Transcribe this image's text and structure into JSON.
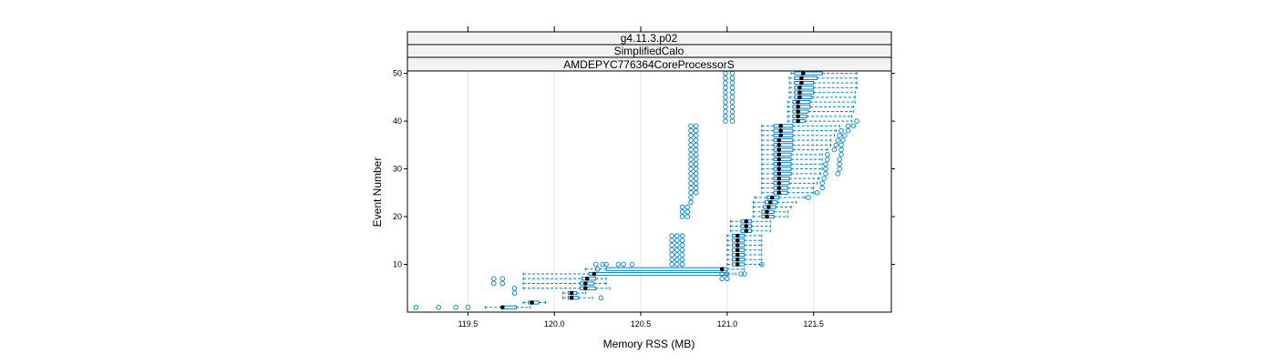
{
  "chart_data": {
    "type": "boxplot",
    "strips": [
      "g4.11.3.p02",
      "SimplifiedCalo",
      "AMDEPYC776364CoreProcessorS"
    ],
    "xlabel": "Memory RSS (MB)",
    "ylabel": "Event Number",
    "xlim": [
      119.15,
      121.95
    ],
    "ylim": [
      0,
      50.5
    ],
    "x_ticks": [
      119.5,
      120.0,
      120.5,
      121.0,
      121.5
    ],
    "x_tick_labels": [
      "119.5",
      "120.0",
      "120.5",
      "121.0",
      "121.5"
    ],
    "y_ticks": [
      10,
      20,
      30,
      40,
      50
    ],
    "y_tick_labels": [
      "10",
      "20",
      "30",
      "40",
      "50"
    ],
    "grid": true,
    "colors": {
      "box": "#0080c0",
      "median": "#000000",
      "strip_bg": "#f2f2f2",
      "grid": "#e6e6e6"
    },
    "series": [
      {
        "event": 1,
        "wlo": 119.6,
        "q1": 119.7,
        "median": 119.7,
        "q3": 119.78,
        "whi": 119.86,
        "outliers": [
          119.2,
          119.33,
          119.43,
          119.5
        ]
      },
      {
        "event": 2,
        "wlo": 119.82,
        "q1": 119.85,
        "median": 119.87,
        "q3": 119.91,
        "whi": 119.95,
        "outliers": []
      },
      {
        "event": 3,
        "wlo": 120.05,
        "q1": 120.08,
        "median": 120.1,
        "q3": 120.14,
        "whi": 120.22,
        "outliers": [
          120.27
        ]
      },
      {
        "event": 4,
        "wlo": 120.05,
        "q1": 120.08,
        "median": 120.1,
        "q3": 120.13,
        "whi": 120.18,
        "outliers": [
          119.77
        ]
      },
      {
        "event": 5,
        "wlo": 119.82,
        "q1": 120.15,
        "median": 120.18,
        "q3": 120.24,
        "whi": 120.32,
        "outliers": [
          119.77
        ]
      },
      {
        "event": 6,
        "wlo": 119.82,
        "q1": 120.15,
        "median": 120.18,
        "q3": 120.23,
        "whi": 120.3,
        "outliers": [
          119.65,
          119.7
        ]
      },
      {
        "event": 7,
        "wlo": 119.82,
        "q1": 120.16,
        "median": 120.19,
        "q3": 120.24,
        "whi": 120.3,
        "outliers": [
          119.65,
          119.7,
          120.97,
          121.0
        ]
      },
      {
        "event": 8,
        "wlo": 119.82,
        "q1": 120.2,
        "median": 120.23,
        "q3": 121.0,
        "whi": 121.05,
        "outliers": [
          120.97,
          121.0,
          121.08,
          121.1
        ]
      },
      {
        "event": 9,
        "wlo": 120.18,
        "q1": 120.3,
        "median": 120.97,
        "q3": 121.0,
        "whi": 121.1,
        "outliers": [
          120.25
        ]
      },
      {
        "event": 10,
        "wlo": 121.0,
        "q1": 121.03,
        "median": 121.06,
        "q3": 121.1,
        "whi": 121.2,
        "outliers": [
          120.24,
          120.28,
          120.3,
          120.37,
          120.4,
          120.45,
          120.68,
          120.71,
          120.74,
          121.2
        ]
      },
      {
        "event": 11,
        "wlo": 121.0,
        "q1": 121.03,
        "median": 121.06,
        "q3": 121.1,
        "whi": 121.2,
        "outliers": [
          120.68,
          120.71,
          120.74
        ]
      },
      {
        "event": 12,
        "wlo": 121.0,
        "q1": 121.03,
        "median": 121.06,
        "q3": 121.1,
        "whi": 121.2,
        "outliers": [
          120.68,
          120.71,
          120.74
        ]
      },
      {
        "event": 13,
        "wlo": 121.0,
        "q1": 121.03,
        "median": 121.06,
        "q3": 121.1,
        "whi": 121.2,
        "outliers": [
          120.68,
          120.71,
          120.74
        ]
      },
      {
        "event": 14,
        "wlo": 121.0,
        "q1": 121.03,
        "median": 121.06,
        "q3": 121.1,
        "whi": 121.2,
        "outliers": [
          120.68,
          120.71,
          120.74
        ]
      },
      {
        "event": 15,
        "wlo": 121.0,
        "q1": 121.03,
        "median": 121.06,
        "q3": 121.1,
        "whi": 121.2,
        "outliers": [
          120.68,
          120.71,
          120.74
        ]
      },
      {
        "event": 16,
        "wlo": 121.0,
        "q1": 121.03,
        "median": 121.06,
        "q3": 121.1,
        "whi": 121.2,
        "outliers": [
          120.68,
          120.71,
          120.74
        ]
      },
      {
        "event": 17,
        "wlo": 121.02,
        "q1": 121.08,
        "median": 121.11,
        "q3": 121.14,
        "whi": 121.25,
        "outliers": []
      },
      {
        "event": 18,
        "wlo": 121.02,
        "q1": 121.08,
        "median": 121.11,
        "q3": 121.14,
        "whi": 121.25,
        "outliers": []
      },
      {
        "event": 19,
        "wlo": 121.02,
        "q1": 121.08,
        "median": 121.11,
        "q3": 121.14,
        "whi": 121.25,
        "outliers": []
      },
      {
        "event": 20,
        "wlo": 121.15,
        "q1": 121.2,
        "median": 121.23,
        "q3": 121.27,
        "whi": 121.35,
        "outliers": [
          120.74,
          120.77
        ]
      },
      {
        "event": 21,
        "wlo": 121.15,
        "q1": 121.2,
        "median": 121.23,
        "q3": 121.27,
        "whi": 121.35,
        "outliers": [
          120.74,
          120.77
        ]
      },
      {
        "event": 22,
        "wlo": 121.15,
        "q1": 121.21,
        "median": 121.24,
        "q3": 121.28,
        "whi": 121.37,
        "outliers": [
          120.74,
          120.77
        ]
      },
      {
        "event": 23,
        "wlo": 121.15,
        "q1": 121.22,
        "median": 121.25,
        "q3": 121.29,
        "whi": 121.4,
        "outliers": [
          120.79
        ]
      },
      {
        "event": 24,
        "wlo": 121.16,
        "q1": 121.23,
        "median": 121.26,
        "q3": 121.3,
        "whi": 121.45,
        "outliers": [
          120.79,
          121.47
        ]
      },
      {
        "event": 25,
        "wlo": 121.2,
        "q1": 121.27,
        "median": 121.3,
        "q3": 121.35,
        "whi": 121.5,
        "outliers": [
          120.79,
          120.82,
          121.52
        ]
      },
      {
        "event": 26,
        "wlo": 121.2,
        "q1": 121.27,
        "median": 121.3,
        "q3": 121.35,
        "whi": 121.5,
        "outliers": [
          120.79,
          120.82,
          121.55
        ]
      },
      {
        "event": 27,
        "wlo": 121.2,
        "q1": 121.27,
        "median": 121.3,
        "q3": 121.36,
        "whi": 121.52,
        "outliers": [
          120.79,
          120.82,
          121.55
        ]
      },
      {
        "event": 28,
        "wlo": 121.2,
        "q1": 121.27,
        "median": 121.3,
        "q3": 121.36,
        "whi": 121.53,
        "outliers": [
          120.79,
          120.82,
          121.56
        ]
      },
      {
        "event": 29,
        "wlo": 121.2,
        "q1": 121.27,
        "median": 121.3,
        "q3": 121.37,
        "whi": 121.54,
        "outliers": [
          120.79,
          120.82,
          121.57,
          121.64
        ]
      },
      {
        "event": 30,
        "wlo": 121.2,
        "q1": 121.27,
        "median": 121.3,
        "q3": 121.37,
        "whi": 121.55,
        "outliers": [
          120.79,
          120.82,
          121.57,
          121.65
        ]
      },
      {
        "event": 31,
        "wlo": 121.2,
        "q1": 121.27,
        "median": 121.3,
        "q3": 121.37,
        "whi": 121.55,
        "outliers": [
          120.79,
          120.82,
          121.57,
          121.65
        ]
      },
      {
        "event": 32,
        "wlo": 121.2,
        "q1": 121.27,
        "median": 121.3,
        "q3": 121.37,
        "whi": 121.55,
        "outliers": [
          120.79,
          120.82,
          121.58,
          121.65
        ]
      },
      {
        "event": 33,
        "wlo": 121.2,
        "q1": 121.27,
        "median": 121.3,
        "q3": 121.37,
        "whi": 121.55,
        "outliers": [
          120.79,
          120.82,
          121.58,
          121.66
        ]
      },
      {
        "event": 34,
        "wlo": 121.2,
        "q1": 121.27,
        "median": 121.3,
        "q3": 121.38,
        "whi": 121.58,
        "outliers": [
          120.79,
          120.82,
          121.62,
          121.66
        ]
      },
      {
        "event": 35,
        "wlo": 121.2,
        "q1": 121.27,
        "median": 121.3,
        "q3": 121.38,
        "whi": 121.6,
        "outliers": [
          120.79,
          120.82,
          121.63,
          121.66
        ]
      },
      {
        "event": 36,
        "wlo": 121.2,
        "q1": 121.27,
        "median": 121.3,
        "q3": 121.38,
        "whi": 121.6,
        "outliers": [
          120.79,
          120.82,
          121.64,
          121.67
        ]
      },
      {
        "event": 37,
        "wlo": 121.2,
        "q1": 121.27,
        "median": 121.31,
        "q3": 121.38,
        "whi": 121.62,
        "outliers": [
          120.79,
          120.82,
          121.65,
          121.68
        ]
      },
      {
        "event": 38,
        "wlo": 121.2,
        "q1": 121.27,
        "median": 121.31,
        "q3": 121.38,
        "whi": 121.63,
        "outliers": [
          120.79,
          120.82,
          121.66,
          121.7
        ]
      },
      {
        "event": 39,
        "wlo": 121.2,
        "q1": 121.27,
        "median": 121.31,
        "q3": 121.38,
        "whi": 121.65,
        "outliers": [
          120.79,
          120.82,
          121.7,
          121.73
        ]
      },
      {
        "event": 40,
        "wlo": 121.35,
        "q1": 121.38,
        "median": 121.41,
        "q3": 121.45,
        "whi": 121.72,
        "outliers": [
          120.99,
          121.03,
          121.75
        ]
      },
      {
        "event": 41,
        "wlo": 121.35,
        "q1": 121.38,
        "median": 121.41,
        "q3": 121.46,
        "whi": 121.72,
        "outliers": [
          120.99,
          121.03
        ]
      },
      {
        "event": 42,
        "wlo": 121.35,
        "q1": 121.38,
        "median": 121.41,
        "q3": 121.47,
        "whi": 121.73,
        "outliers": [
          120.99,
          121.03
        ]
      },
      {
        "event": 43,
        "wlo": 121.35,
        "q1": 121.38,
        "median": 121.41,
        "q3": 121.48,
        "whi": 121.73,
        "outliers": [
          120.99,
          121.03
        ]
      },
      {
        "event": 44,
        "wlo": 121.35,
        "q1": 121.38,
        "median": 121.41,
        "q3": 121.48,
        "whi": 121.74,
        "outliers": [
          120.99,
          121.03
        ]
      },
      {
        "event": 45,
        "wlo": 121.36,
        "q1": 121.39,
        "median": 121.42,
        "q3": 121.49,
        "whi": 121.74,
        "outliers": [
          120.99,
          121.03
        ]
      },
      {
        "event": 46,
        "wlo": 121.36,
        "q1": 121.39,
        "median": 121.42,
        "q3": 121.5,
        "whi": 121.74,
        "outliers": [
          120.99,
          121.03
        ]
      },
      {
        "event": 47,
        "wlo": 121.36,
        "q1": 121.39,
        "median": 121.42,
        "q3": 121.5,
        "whi": 121.75,
        "outliers": [
          120.99,
          121.03
        ]
      },
      {
        "event": 48,
        "wlo": 121.36,
        "q1": 121.39,
        "median": 121.43,
        "q3": 121.5,
        "whi": 121.75,
        "outliers": [
          120.99,
          121.03
        ]
      },
      {
        "event": 49,
        "wlo": 121.36,
        "q1": 121.39,
        "median": 121.43,
        "q3": 121.52,
        "whi": 121.75,
        "outliers": [
          120.99,
          121.03
        ]
      },
      {
        "event": 50,
        "wlo": 121.37,
        "q1": 121.39,
        "median": 121.44,
        "q3": 121.55,
        "whi": 121.75,
        "outliers": [
          120.99,
          121.03
        ]
      }
    ]
  }
}
